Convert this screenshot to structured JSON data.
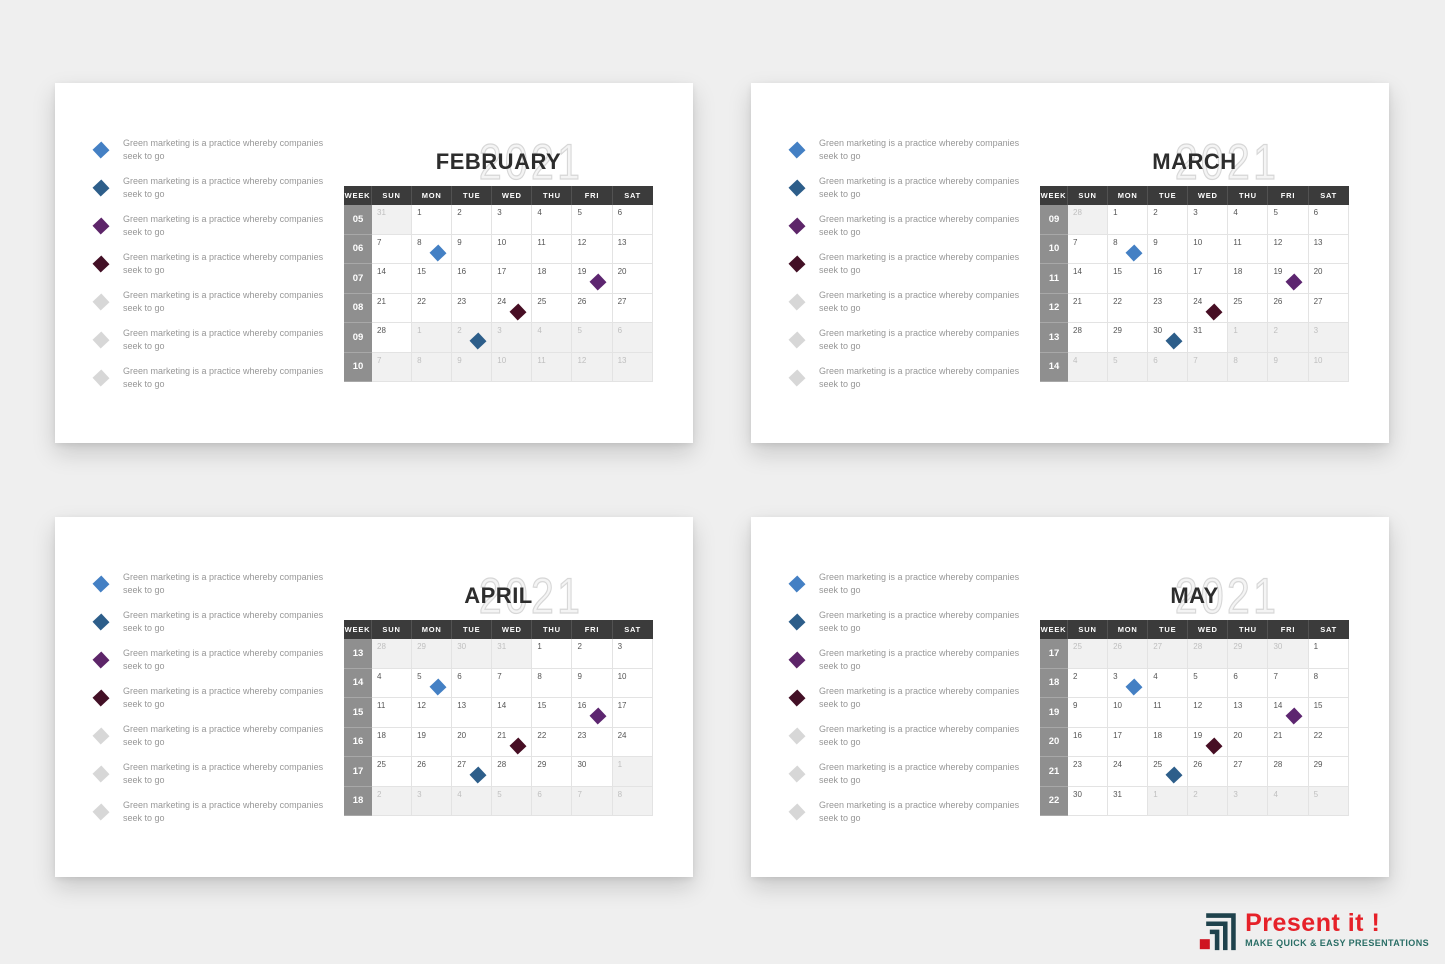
{
  "bullets": {
    "line1": "Green marketing is a practice whereby companies",
    "line2": "seek to go",
    "colors": [
      "#4480c4",
      "#2d5e8a",
      "#5d2569",
      "#431026",
      "#d7d7d7",
      "#d7d7d7",
      "#d7d7d7"
    ]
  },
  "calendar": {
    "header": [
      "WEEK",
      "SUN",
      "MON",
      "TUE",
      "WED",
      "THU",
      "FRI",
      "SAT"
    ]
  },
  "marker_colors": {
    "blue": "#4480c4",
    "darkblue": "#2d5e8a",
    "purple": "#5d2670",
    "maroon": "#470e24"
  },
  "months": [
    {
      "name": "FEBRUARY",
      "year": "2021",
      "weeks": [
        {
          "num": "05",
          "days": [
            {
              "d": "31",
              "out": true
            },
            {
              "d": "1"
            },
            {
              "d": "2"
            },
            {
              "d": "3"
            },
            {
              "d": "4"
            },
            {
              "d": "5"
            },
            {
              "d": "6"
            }
          ]
        },
        {
          "num": "06",
          "days": [
            {
              "d": "7"
            },
            {
              "d": "8",
              "m": "blue"
            },
            {
              "d": "9"
            },
            {
              "d": "10"
            },
            {
              "d": "11"
            },
            {
              "d": "12"
            },
            {
              "d": "13"
            }
          ]
        },
        {
          "num": "07",
          "days": [
            {
              "d": "14"
            },
            {
              "d": "15"
            },
            {
              "d": "16"
            },
            {
              "d": "17"
            },
            {
              "d": "18"
            },
            {
              "d": "19",
              "m": "purple"
            },
            {
              "d": "20"
            }
          ]
        },
        {
          "num": "08",
          "days": [
            {
              "d": "21"
            },
            {
              "d": "22"
            },
            {
              "d": "23"
            },
            {
              "d": "24",
              "m": "maroon"
            },
            {
              "d": "25"
            },
            {
              "d": "26"
            },
            {
              "d": "27"
            }
          ]
        },
        {
          "num": "09",
          "days": [
            {
              "d": "28"
            },
            {
              "d": "1",
              "out": true
            },
            {
              "d": "2",
              "out": true,
              "m": "darkblue"
            },
            {
              "d": "3",
              "out": true
            },
            {
              "d": "4",
              "out": true
            },
            {
              "d": "5",
              "out": true
            },
            {
              "d": "6",
              "out": true
            }
          ]
        },
        {
          "num": "10",
          "days": [
            {
              "d": "7",
              "out": true
            },
            {
              "d": "8",
              "out": true
            },
            {
              "d": "9",
              "out": true
            },
            {
              "d": "10",
              "out": true
            },
            {
              "d": "11",
              "out": true
            },
            {
              "d": "12",
              "out": true
            },
            {
              "d": "13",
              "out": true
            }
          ]
        }
      ]
    },
    {
      "name": "MARCH",
      "year": "2021",
      "weeks": [
        {
          "num": "09",
          "days": [
            {
              "d": "28",
              "out": true
            },
            {
              "d": "1"
            },
            {
              "d": "2"
            },
            {
              "d": "3"
            },
            {
              "d": "4"
            },
            {
              "d": "5"
            },
            {
              "d": "6"
            }
          ]
        },
        {
          "num": "10",
          "days": [
            {
              "d": "7"
            },
            {
              "d": "8",
              "m": "blue"
            },
            {
              "d": "9"
            },
            {
              "d": "10"
            },
            {
              "d": "11"
            },
            {
              "d": "12"
            },
            {
              "d": "13"
            }
          ]
        },
        {
          "num": "11",
          "days": [
            {
              "d": "14"
            },
            {
              "d": "15"
            },
            {
              "d": "16"
            },
            {
              "d": "17"
            },
            {
              "d": "18"
            },
            {
              "d": "19",
              "m": "purple"
            },
            {
              "d": "20"
            }
          ]
        },
        {
          "num": "12",
          "days": [
            {
              "d": "21"
            },
            {
              "d": "22"
            },
            {
              "d": "23"
            },
            {
              "d": "24",
              "m": "maroon"
            },
            {
              "d": "25"
            },
            {
              "d": "26"
            },
            {
              "d": "27"
            }
          ]
        },
        {
          "num": "13",
          "days": [
            {
              "d": "28"
            },
            {
              "d": "29"
            },
            {
              "d": "30",
              "m": "darkblue"
            },
            {
              "d": "31"
            },
            {
              "d": "1",
              "out": true
            },
            {
              "d": "2",
              "out": true
            },
            {
              "d": "3",
              "out": true
            }
          ]
        },
        {
          "num": "14",
          "days": [
            {
              "d": "4",
              "out": true
            },
            {
              "d": "5",
              "out": true
            },
            {
              "d": "6",
              "out": true
            },
            {
              "d": "7",
              "out": true
            },
            {
              "d": "8",
              "out": true
            },
            {
              "d": "9",
              "out": true
            },
            {
              "d": "10",
              "out": true
            }
          ]
        }
      ]
    },
    {
      "name": "APRIL",
      "year": "2021",
      "weeks": [
        {
          "num": "13",
          "days": [
            {
              "d": "28",
              "out": true
            },
            {
              "d": "29",
              "out": true
            },
            {
              "d": "30",
              "out": true
            },
            {
              "d": "31",
              "out": true
            },
            {
              "d": "1"
            },
            {
              "d": "2"
            },
            {
              "d": "3"
            }
          ]
        },
        {
          "num": "14",
          "days": [
            {
              "d": "4"
            },
            {
              "d": "5",
              "m": "blue"
            },
            {
              "d": "6"
            },
            {
              "d": "7"
            },
            {
              "d": "8"
            },
            {
              "d": "9"
            },
            {
              "d": "10"
            }
          ]
        },
        {
          "num": "15",
          "days": [
            {
              "d": "11"
            },
            {
              "d": "12"
            },
            {
              "d": "13"
            },
            {
              "d": "14"
            },
            {
              "d": "15"
            },
            {
              "d": "16",
              "m": "purple"
            },
            {
              "d": "17"
            }
          ]
        },
        {
          "num": "16",
          "days": [
            {
              "d": "18"
            },
            {
              "d": "19"
            },
            {
              "d": "20"
            },
            {
              "d": "21",
              "m": "maroon"
            },
            {
              "d": "22"
            },
            {
              "d": "23"
            },
            {
              "d": "24"
            }
          ]
        },
        {
          "num": "17",
          "days": [
            {
              "d": "25"
            },
            {
              "d": "26"
            },
            {
              "d": "27",
              "m": "darkblue"
            },
            {
              "d": "28"
            },
            {
              "d": "29"
            },
            {
              "d": "30"
            },
            {
              "d": "1",
              "out": true
            }
          ]
        },
        {
          "num": "18",
          "days": [
            {
              "d": "2",
              "out": true
            },
            {
              "d": "3",
              "out": true
            },
            {
              "d": "4",
              "out": true
            },
            {
              "d": "5",
              "out": true
            },
            {
              "d": "6",
              "out": true
            },
            {
              "d": "7",
              "out": true
            },
            {
              "d": "8",
              "out": true
            }
          ]
        }
      ]
    },
    {
      "name": "MAY",
      "year": "2021",
      "weeks": [
        {
          "num": "17",
          "days": [
            {
              "d": "25",
              "out": true
            },
            {
              "d": "26",
              "out": true
            },
            {
              "d": "27",
              "out": true
            },
            {
              "d": "28",
              "out": true
            },
            {
              "d": "29",
              "out": true
            },
            {
              "d": "30",
              "out": true
            },
            {
              "d": "1"
            }
          ]
        },
        {
          "num": "18",
          "days": [
            {
              "d": "2"
            },
            {
              "d": "3",
              "m": "blue"
            },
            {
              "d": "4"
            },
            {
              "d": "5"
            },
            {
              "d": "6"
            },
            {
              "d": "7"
            },
            {
              "d": "8"
            }
          ]
        },
        {
          "num": "19",
          "days": [
            {
              "d": "9"
            },
            {
              "d": "10"
            },
            {
              "d": "11"
            },
            {
              "d": "12"
            },
            {
              "d": "13"
            },
            {
              "d": "14",
              "m": "purple"
            },
            {
              "d": "15"
            }
          ]
        },
        {
          "num": "20",
          "days": [
            {
              "d": "16"
            },
            {
              "d": "17"
            },
            {
              "d": "18"
            },
            {
              "d": "19",
              "m": "maroon"
            },
            {
              "d": "20"
            },
            {
              "d": "21"
            },
            {
              "d": "22"
            }
          ]
        },
        {
          "num": "21",
          "days": [
            {
              "d": "23"
            },
            {
              "d": "24"
            },
            {
              "d": "25",
              "m": "darkblue"
            },
            {
              "d": "26"
            },
            {
              "d": "27"
            },
            {
              "d": "28"
            },
            {
              "d": "29"
            }
          ]
        },
        {
          "num": "22",
          "days": [
            {
              "d": "30"
            },
            {
              "d": "31"
            },
            {
              "d": "1",
              "out": true
            },
            {
              "d": "2",
              "out": true
            },
            {
              "d": "3",
              "out": true
            },
            {
              "d": "4",
              "out": true
            },
            {
              "d": "5",
              "out": true
            }
          ]
        }
      ]
    }
  ],
  "logo": {
    "title": "Present it !",
    "subtitle": "MAKE QUICK & EASY PRESENTATIONS",
    "title_color": "#e62129",
    "subtitle_color": "#2a6e66",
    "icon_dark": "#1e424c",
    "icon_red": "#cf1420"
  }
}
